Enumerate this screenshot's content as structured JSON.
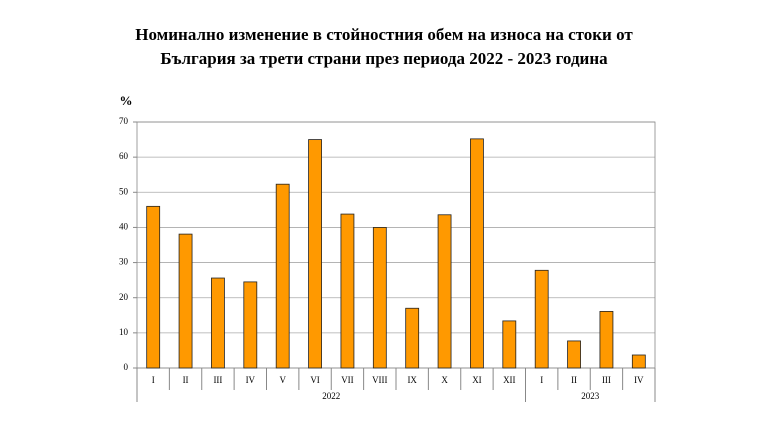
{
  "chart_data": {
    "type": "bar",
    "title_lines": [
      "Номинално изменение в стойностния обем на износа на стоки от",
      "България за трети страни през периода 2022 - 2023 година"
    ],
    "y_label": "%",
    "groups": [
      {
        "label": "2022",
        "categories": [
          "I",
          "II",
          "III",
          "IV",
          "V",
          "VI",
          "VII",
          "VIII",
          "IX",
          "X",
          "XI",
          "XII"
        ],
        "values": [
          46,
          38.1,
          25.6,
          24.5,
          52.3,
          65,
          43.8,
          40,
          17,
          43.6,
          65.2,
          13.4
        ]
      },
      {
        "label": "2023",
        "categories": [
          "I",
          "II",
          "III",
          "IV"
        ],
        "values": [
          27.8,
          7.7,
          16.1,
          3.7
        ]
      }
    ],
    "color": "#ff9900",
    "ylim": [
      0,
      70
    ],
    "yticks": [
      0,
      10,
      20,
      30,
      40,
      50,
      60,
      70
    ],
    "grid": true
  }
}
